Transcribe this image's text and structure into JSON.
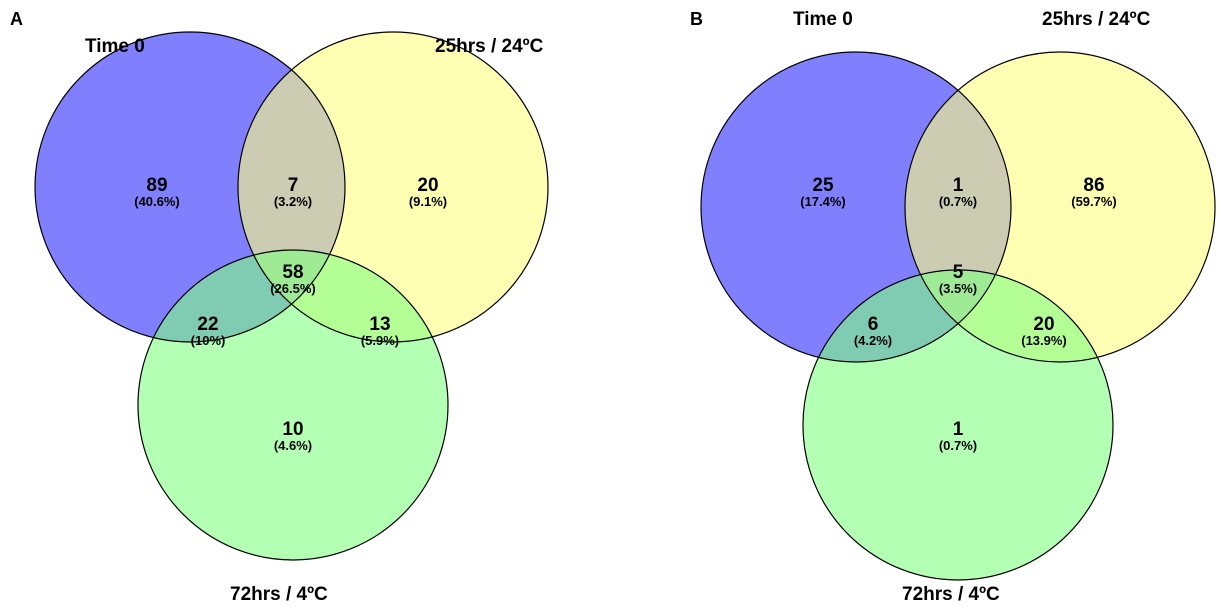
{
  "colors": {
    "time0": "#8080ff",
    "hrs25": "#ffff80",
    "hrs72": "#80ff80"
  },
  "panels": [
    {
      "label": "A",
      "sets": {
        "time0": "Time 0",
        "hrs25": "25hrs / 24ºC",
        "hrs72": "72hrs / 4ºC"
      },
      "regions": {
        "time0_only": {
          "count": "89",
          "pct": "(40.6%)"
        },
        "time0_hrs25": {
          "count": "7",
          "pct": "(3.2%)"
        },
        "hrs25_only": {
          "count": "20",
          "pct": "(9.1%)"
        },
        "all_three": {
          "count": "58",
          "pct": "(26.5%)"
        },
        "time0_hrs72": {
          "count": "22",
          "pct": "(10%)"
        },
        "hrs25_hrs72": {
          "count": "13",
          "pct": "(5.9%)"
        },
        "hrs72_only": {
          "count": "10",
          "pct": "(4.6%)"
        }
      }
    },
    {
      "label": "B",
      "sets": {
        "time0": "Time 0",
        "hrs25": "25hrs / 24ºC",
        "hrs72": "72hrs / 4ºC"
      },
      "regions": {
        "time0_only": {
          "count": "25",
          "pct": "(17.4%)"
        },
        "time0_hrs25": {
          "count": "1",
          "pct": "(0.7%)"
        },
        "hrs25_only": {
          "count": "86",
          "pct": "(59.7%)"
        },
        "all_three": {
          "count": "5",
          "pct": "(3.5%)"
        },
        "time0_hrs72": {
          "count": "6",
          "pct": "(4.2%)"
        },
        "hrs25_hrs72": {
          "count": "20",
          "pct": "(13.9%)"
        },
        "hrs72_only": {
          "count": "1",
          "pct": "(0.7%)"
        }
      }
    }
  ]
}
